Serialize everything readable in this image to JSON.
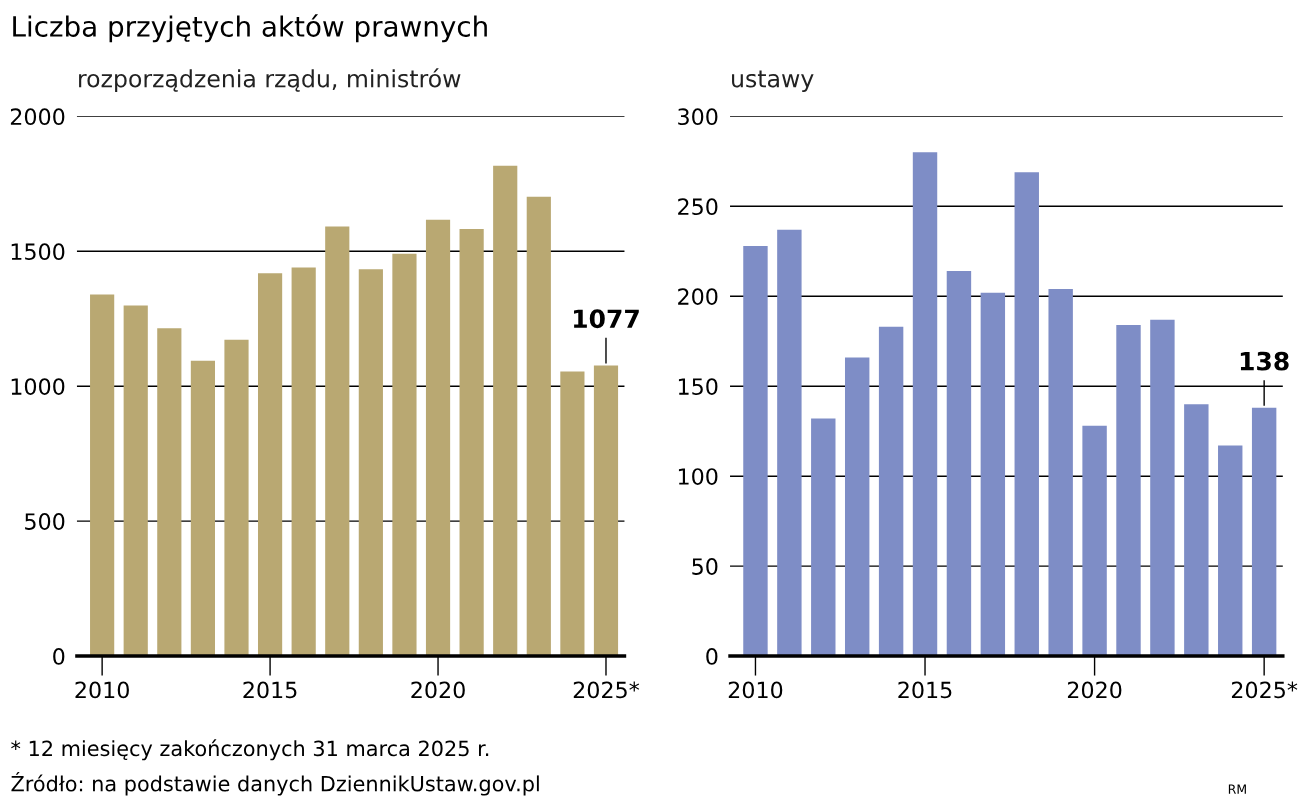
{
  "chart_data": [
    {
      "type": "bar",
      "title": "Liczba przyjętych aktów prawnych",
      "subtitle": "rozporządzenia rządu, ministrów",
      "categories": [
        "2010",
        null,
        null,
        null,
        null,
        "2015",
        null,
        null,
        null,
        null,
        "2020",
        null,
        null,
        null,
        null,
        "2025*"
      ],
      "values": [
        1340,
        1299,
        1215,
        1094,
        1172,
        1419,
        1440,
        1592,
        1433,
        1491,
        1617,
        1583,
        1817,
        1702,
        1055,
        1077
      ],
      "value_labels": [
        null,
        null,
        null,
        null,
        null,
        null,
        null,
        null,
        null,
        null,
        null,
        null,
        null,
        null,
        null,
        "1077"
      ],
      "color": "#b9a872",
      "ylim": [
        0,
        2000
      ],
      "yticks": [
        0,
        500,
        1000,
        1500,
        2000
      ],
      "grid": "y",
      "annotations": [
        "* 12 miesięcy zakończonych 31 marca 2025 r.",
        "Źródło: na podstawie danych DziennikUstaw.gov.pl"
      ]
    },
    {
      "type": "bar",
      "subtitle": "ustawy",
      "categories": [
        "2010",
        null,
        null,
        null,
        null,
        "2015",
        null,
        null,
        null,
        null,
        "2020",
        null,
        null,
        null,
        null,
        "2025*"
      ],
      "values": [
        228,
        237,
        132,
        166,
        183,
        280,
        214,
        202,
        269,
        204,
        128,
        184,
        187,
        140,
        117,
        138
      ],
      "value_labels": [
        null,
        null,
        null,
        null,
        null,
        null,
        null,
        null,
        null,
        null,
        null,
        null,
        null,
        null,
        null,
        "138"
      ],
      "color": "#7e8dc6",
      "ylim": [
        0,
        300
      ],
      "yticks": [
        0,
        50,
        100,
        150,
        200,
        250,
        300
      ],
      "grid": "y",
      "annotations": [
        "RM"
      ]
    }
  ]
}
